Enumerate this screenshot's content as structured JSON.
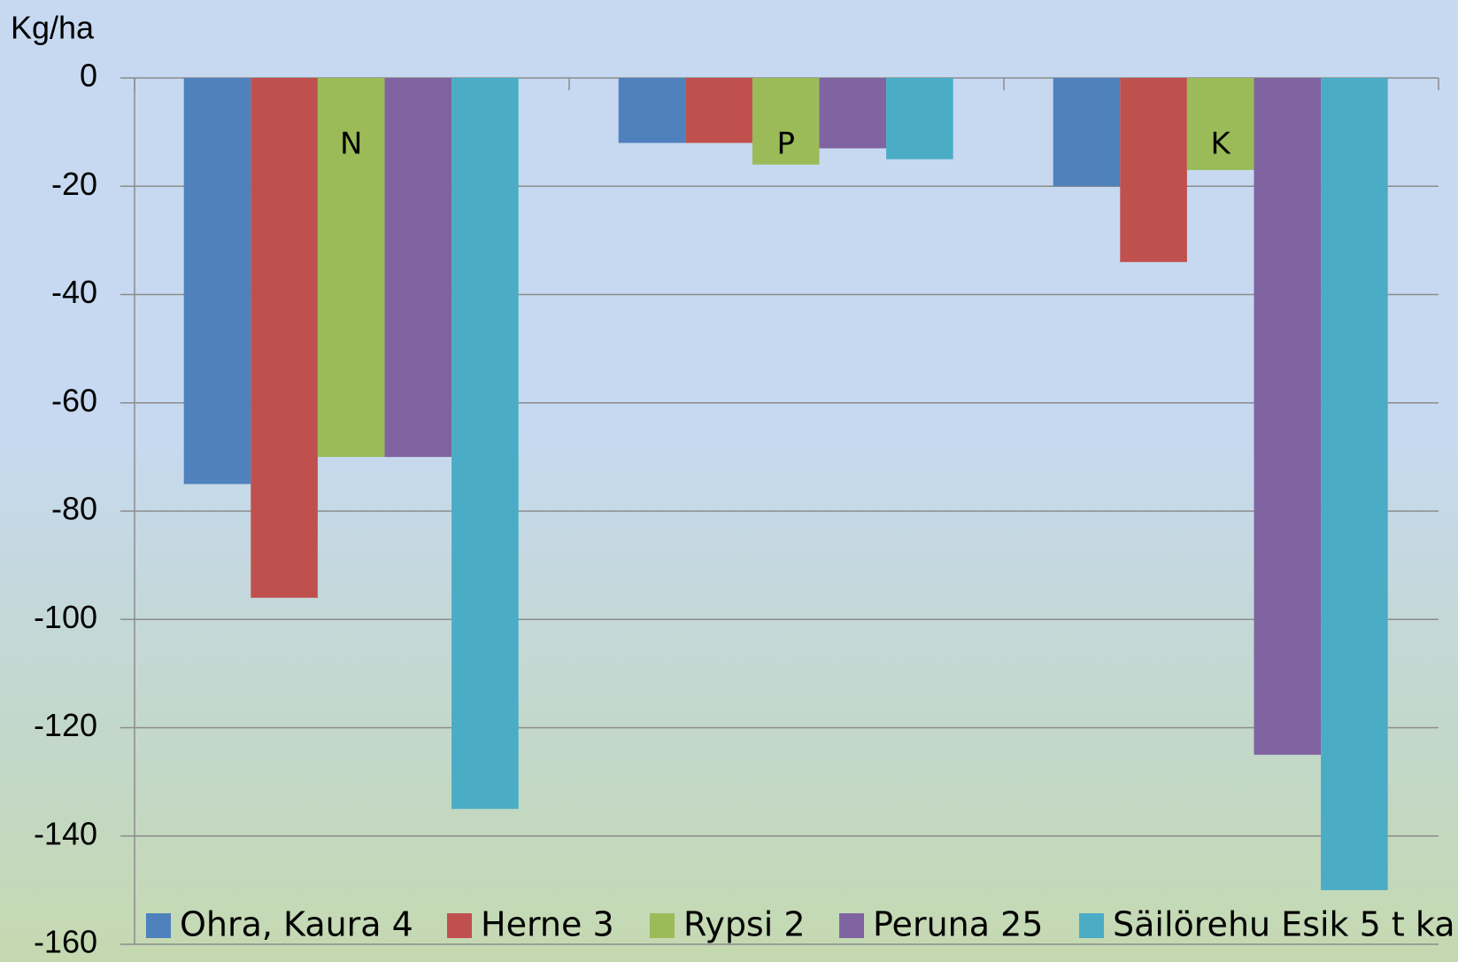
{
  "chart_data": {
    "type": "bar",
    "y_label": "Kg/ha",
    "categories": [
      "N",
      "P",
      "K"
    ],
    "series": [
      {
        "name": "Ohra, Kaura 4",
        "color": "#4f81bd",
        "values": [
          -75,
          -12,
          -20
        ]
      },
      {
        "name": "Herne 3",
        "color": "#c0504d",
        "values": [
          -96,
          -12,
          -34
        ]
      },
      {
        "name": "Rypsi 2",
        "color": "#9bbb59",
        "values": [
          -70,
          -16,
          -17
        ]
      },
      {
        "name": "Peruna 25",
        "color": "#8064a2",
        "values": [
          -70,
          -13,
          -125
        ]
      },
      {
        "name": "Säilörehu Esik 5 t ka",
        "color": "#4bacc6",
        "values": [
          -135,
          -15,
          -150
        ]
      }
    ],
    "ylim": [
      -160,
      0
    ],
    "yticks": [
      0,
      -20,
      -40,
      -60,
      -80,
      -100,
      -120,
      -140,
      -160
    ],
    "grid": true,
    "legend": "bottom"
  }
}
